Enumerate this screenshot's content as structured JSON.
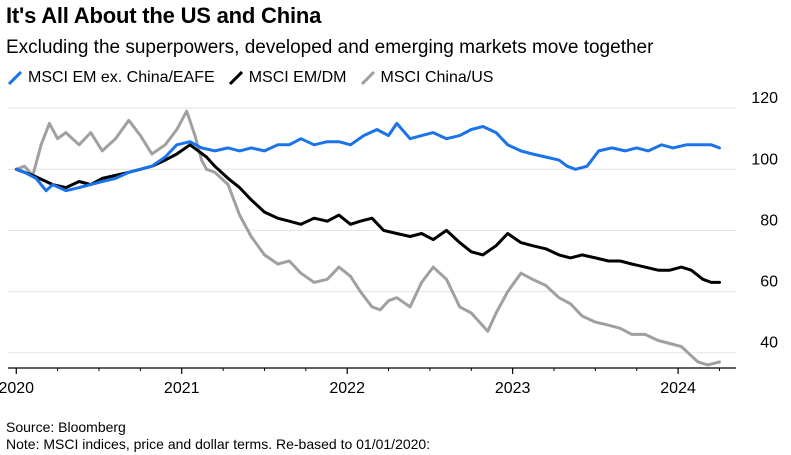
{
  "title": "It's All About the US and China",
  "subtitle": "Excluding the superpowers, developed and emerging markets move together",
  "source": "Source: Bloomberg",
  "note": "Note: MSCI indices, price and dollar terms. Re-based to 01/01/2020:",
  "chart_data": {
    "type": "line",
    "y_axis_position": "right",
    "ylim": [
      35,
      122
    ],
    "yticks": [
      40,
      60,
      80,
      100,
      120
    ],
    "xlim": [
      2019.95,
      2024.35
    ],
    "xticks": [
      2020,
      2021,
      2022,
      2023,
      2024
    ],
    "xtick_labels": [
      "2020",
      "2021",
      "2022",
      "2023",
      "2024"
    ],
    "grid": "horizontal",
    "legend_position": "top-left",
    "series": [
      {
        "name": "MSCI EM ex. China/EAFE",
        "color": "#1a73e8",
        "x": [
          2020.0,
          2020.05,
          2020.12,
          2020.18,
          2020.22,
          2020.3,
          2020.38,
          2020.45,
          2020.52,
          2020.6,
          2020.68,
          2020.75,
          2020.82,
          2020.9,
          2020.97,
          2021.05,
          2021.12,
          2021.2,
          2021.28,
          2021.35,
          2021.42,
          2021.5,
          2021.58,
          2021.65,
          2021.72,
          2021.8,
          2021.88,
          2021.95,
          2022.02,
          2022.1,
          2022.18,
          2022.25,
          2022.3,
          2022.38,
          2022.45,
          2022.52,
          2022.6,
          2022.68,
          2022.75,
          2022.82,
          2022.9,
          2022.97,
          2023.05,
          2023.12,
          2023.2,
          2023.28,
          2023.33,
          2023.38,
          2023.45,
          2023.52,
          2023.6,
          2023.68,
          2023.75,
          2023.82,
          2023.9,
          2023.97,
          2024.05,
          2024.12,
          2024.2,
          2024.25
        ],
        "values": [
          100,
          99,
          97,
          93,
          95,
          93,
          94,
          95,
          96,
          97,
          99,
          100,
          101,
          104,
          108,
          109,
          107,
          106,
          107,
          106,
          107,
          106,
          108,
          108,
          110,
          108,
          109,
          109,
          108,
          111,
          113,
          111,
          115,
          110,
          111,
          112,
          110,
          111,
          113,
          114,
          112,
          108,
          106,
          105,
          104,
          103,
          101,
          100,
          101,
          106,
          107,
          106,
          107,
          106,
          108,
          107,
          108,
          108,
          108,
          107
        ]
      },
      {
        "name": "MSCI EM/DM",
        "color": "#000000",
        "x": [
          2020.0,
          2020.05,
          2020.1,
          2020.18,
          2020.22,
          2020.3,
          2020.38,
          2020.45,
          2020.52,
          2020.6,
          2020.68,
          2020.75,
          2020.82,
          2020.9,
          2020.97,
          2021.05,
          2021.1,
          2021.15,
          2021.2,
          2021.28,
          2021.35,
          2021.42,
          2021.5,
          2021.58,
          2021.65,
          2021.72,
          2021.8,
          2021.88,
          2021.95,
          2022.02,
          2022.08,
          2022.15,
          2022.22,
          2022.3,
          2022.38,
          2022.45,
          2022.52,
          2022.6,
          2022.68,
          2022.75,
          2022.82,
          2022.9,
          2022.97,
          2023.05,
          2023.12,
          2023.2,
          2023.28,
          2023.35,
          2023.42,
          2023.5,
          2023.58,
          2023.65,
          2023.72,
          2023.8,
          2023.88,
          2023.95,
          2024.02,
          2024.08,
          2024.15,
          2024.2,
          2024.25
        ],
        "values": [
          100,
          99,
          98,
          96,
          95,
          94,
          96,
          95,
          97,
          98,
          99,
          100,
          101,
          103,
          105,
          108,
          106,
          104,
          101,
          97,
          94,
          90,
          86,
          84,
          83,
          82,
          84,
          83,
          85,
          82,
          83,
          84,
          80,
          79,
          78,
          79,
          77,
          80,
          76,
          73,
          72,
          75,
          79,
          76,
          75,
          74,
          72,
          71,
          72,
          71,
          70,
          70,
          69,
          68,
          67,
          67,
          68,
          67,
          64,
          63,
          63
        ]
      },
      {
        "name": "MSCI China/US",
        "color": "#a0a0a0",
        "x": [
          2020.0,
          2020.05,
          2020.1,
          2020.15,
          2020.2,
          2020.25,
          2020.3,
          2020.38,
          2020.45,
          2020.52,
          2020.6,
          2020.68,
          2020.75,
          2020.82,
          2020.9,
          2020.97,
          2021.03,
          2021.08,
          2021.12,
          2021.15,
          2021.2,
          2021.28,
          2021.35,
          2021.42,
          2021.5,
          2021.58,
          2021.65,
          2021.72,
          2021.8,
          2021.88,
          2021.95,
          2022.02,
          2022.08,
          2022.15,
          2022.2,
          2022.25,
          2022.3,
          2022.38,
          2022.45,
          2022.52,
          2022.6,
          2022.68,
          2022.75,
          2022.8,
          2022.85,
          2022.9,
          2022.97,
          2023.05,
          2023.12,
          2023.2,
          2023.28,
          2023.35,
          2023.42,
          2023.5,
          2023.58,
          2023.65,
          2023.72,
          2023.8,
          2023.88,
          2023.95,
          2024.02,
          2024.08,
          2024.12,
          2024.18,
          2024.25
        ],
        "values": [
          100,
          101,
          98,
          108,
          115,
          110,
          112,
          108,
          112,
          106,
          110,
          116,
          111,
          105,
          108,
          113,
          119,
          111,
          103,
          100,
          99,
          95,
          85,
          78,
          72,
          69,
          70,
          66,
          63,
          64,
          68,
          65,
          60,
          55,
          54,
          57,
          58,
          55,
          63,
          68,
          64,
          55,
          53,
          50,
          47,
          53,
          60,
          66,
          64,
          62,
          58,
          56,
          52,
          50,
          49,
          48,
          46,
          46,
          44,
          43,
          42,
          39,
          37,
          36,
          37
        ]
      }
    ]
  }
}
